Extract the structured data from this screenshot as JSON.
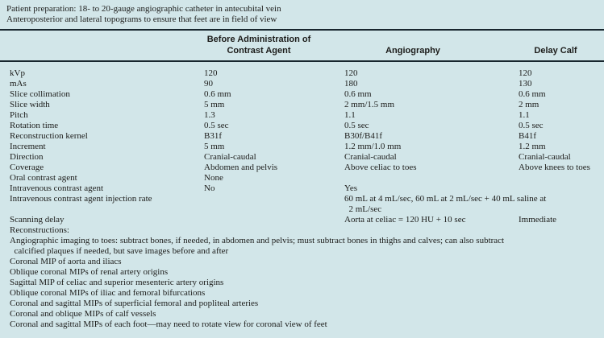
{
  "colors": {
    "background": "#d2e6e9",
    "rule": "#18262e",
    "text": "#1c1c1a"
  },
  "notes": {
    "line1": "Patient preparation: 18- to 20-gauge angiographic catheter in antecubital vein",
    "line2": "Anteroposterior and lateral topograms to ensure that feet are in field of view"
  },
  "header": {
    "before_line1": "Before Administration of",
    "before_line2": "Contrast Agent",
    "angiography": "Angiography",
    "delay_calf": "Delay Calf"
  },
  "table": {
    "rows": [
      {
        "label": "kVp",
        "before": "120",
        "angio": "120",
        "delay": "120"
      },
      {
        "label": "mAs",
        "before": "90",
        "angio": "180",
        "delay": "130"
      },
      {
        "label": "Slice collimation",
        "before": "0.6 mm",
        "angio": "0.6 mm",
        "delay": "0.6 mm"
      },
      {
        "label": "Slice width",
        "before": "5 mm",
        "angio": "2 mm/1.5 mm",
        "delay": "2 mm"
      },
      {
        "label": "Pitch",
        "before": "1.3",
        "angio": "1.1",
        "delay": "1.1"
      },
      {
        "label": "Rotation time",
        "before": "0.5 sec",
        "angio": "0.5 sec",
        "delay": "0.5 sec"
      },
      {
        "label": "Reconstruction kernel",
        "before": "B31f",
        "angio": "B30f/B41f",
        "delay": "B41f"
      },
      {
        "label": "Increment",
        "before": "5 mm",
        "angio": "1.2 mm/1.0 mm",
        "delay": "1.2 mm"
      },
      {
        "label": "Direction",
        "before": "Cranial-caudal",
        "angio": "Cranial-caudal",
        "delay": "Cranial-caudal"
      },
      {
        "label": "Coverage",
        "before": "Abdomen and pelvis",
        "angio": "Above celiac to toes",
        "delay": "Above knees to toes"
      },
      {
        "label": "Oral contrast agent",
        "before": "None",
        "angio": "",
        "delay": ""
      },
      {
        "label": "Intravenous contrast agent",
        "before": "No",
        "angio": "Yes",
        "delay": ""
      }
    ],
    "injection_row": {
      "label": "Intravenous contrast agent injection rate",
      "value": "60 mL at 4 mL/sec, 60 mL at 2 mL/sec + 40 mL saline at\n  2 mL/sec"
    },
    "scanning_row": {
      "label": "Scanning delay",
      "angio": "Aorta at celiac = 120 HU + 10 sec",
      "delay": "Immediate"
    },
    "reconstructions_label": "Reconstructions:"
  },
  "reconstructions": {
    "items": [
      "Angiographic imaging to toes: subtract bones, if needed, in abdomen and pelvis; must subtract bones in thighs and calves; can also subtract\n  calcified plaques if needed, but save images before and after",
      "Coronal MIP of aorta and iliacs",
      "Oblique coronal MIPs of renal artery origins",
      "Sagittal MIP of celiac and superior mesenteric artery origins",
      "Oblique coronal MIPs of iliac and femoral bifurcations",
      "Coronal and sagittal MIPs of superficial femoral and popliteal arteries",
      "Coronal and oblique MIPs of calf vessels",
      "Coronal and sagittal MIPs of each foot—may need to rotate view for coronal view of feet"
    ]
  }
}
